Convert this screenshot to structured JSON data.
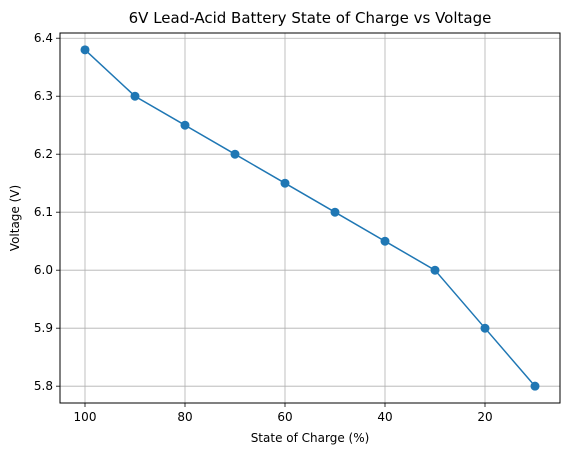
{
  "chart_data": {
    "type": "line",
    "title": "6V Lead-Acid Battery State of Charge vs Voltage",
    "xlabel": "State of Charge (%)",
    "ylabel": "Voltage (V)",
    "x": [
      100,
      90,
      80,
      70,
      60,
      50,
      40,
      30,
      20,
      10
    ],
    "series": [
      {
        "values": [
          6.38,
          6.3,
          6.25,
          6.2,
          6.15,
          6.1,
          6.05,
          6.0,
          5.9,
          5.8
        ]
      }
    ],
    "xlim": [
      105,
      5
    ],
    "ylim": [
      5.771,
      6.409
    ],
    "x_inverted": true,
    "xticks": [
      100,
      80,
      60,
      40,
      20
    ],
    "xtick_labels": [
      "100",
      "80",
      "60",
      "40",
      "20"
    ],
    "yticks": [
      5.8,
      5.9,
      6.0,
      6.1,
      6.2,
      6.3,
      6.4
    ],
    "ytick_labels": [
      "5.8",
      "5.9",
      "6.0",
      "6.1",
      "6.2",
      "6.3",
      "6.4"
    ],
    "grid": true,
    "legend": false,
    "line_color": "#1f77b4",
    "marker": "circle",
    "grid_color": "#b0b0b0"
  }
}
